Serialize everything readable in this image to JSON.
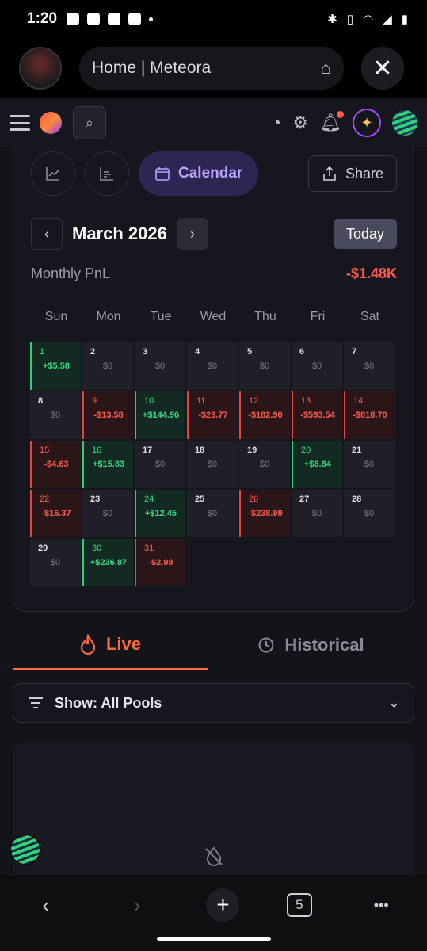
{
  "status": {
    "time": "1:20"
  },
  "browser": {
    "url_title": "Home | Meteora",
    "close_icon": "close-icon",
    "home_icon": "home-icon",
    "back_icon": "back-arrow-icon",
    "forward_icon": "forward-arrow-icon",
    "new_tab": "+",
    "tab_count": "5",
    "menu": "•••"
  },
  "header": {
    "icons": [
      "menu-icon",
      "meteora-logo-icon",
      "search-icon",
      "speedometer-icon",
      "gear-icon",
      "bell-icon",
      "sparkle-icon",
      "wallet-avatar-icon"
    ]
  },
  "view": {
    "calendar_label": "Calendar",
    "share_label": "Share",
    "month_label": "March 2026",
    "today_label": "Today",
    "monthly_pnl_label": "Monthly PnL",
    "monthly_pnl_value": "-$1.48K"
  },
  "weekdays": [
    "Sun",
    "Mon",
    "Tue",
    "Wed",
    "Thu",
    "Fri",
    "Sat"
  ],
  "days": [
    {
      "d": "1",
      "v": "+$5.58",
      "s": "pos"
    },
    {
      "d": "2",
      "v": "$0",
      "s": ""
    },
    {
      "d": "3",
      "v": "$0",
      "s": ""
    },
    {
      "d": "4",
      "v": "$0",
      "s": ""
    },
    {
      "d": "5",
      "v": "$0",
      "s": ""
    },
    {
      "d": "6",
      "v": "$0",
      "s": ""
    },
    {
      "d": "7",
      "v": "$0",
      "s": ""
    },
    {
      "d": "8",
      "v": "$0",
      "s": ""
    },
    {
      "d": "9",
      "v": "-$13.58",
      "s": "neg"
    },
    {
      "d": "10",
      "v": "+$144.96",
      "s": "pos"
    },
    {
      "d": "11",
      "v": "-$29.77",
      "s": "neg"
    },
    {
      "d": "12",
      "v": "-$182.90",
      "s": "neg"
    },
    {
      "d": "13",
      "v": "-$593.54",
      "s": "neg"
    },
    {
      "d": "14",
      "v": "-$818.70",
      "s": "neg"
    },
    {
      "d": "15",
      "v": "-$4.63",
      "s": "neg"
    },
    {
      "d": "16",
      "v": "+$15.83",
      "s": "pos"
    },
    {
      "d": "17",
      "v": "$0",
      "s": ""
    },
    {
      "d": "18",
      "v": "$0",
      "s": ""
    },
    {
      "d": "19",
      "v": "$0",
      "s": ""
    },
    {
      "d": "20",
      "v": "+$6.84",
      "s": "pos"
    },
    {
      "d": "21",
      "v": "$0",
      "s": ""
    },
    {
      "d": "22",
      "v": "-$16.37",
      "s": "neg"
    },
    {
      "d": "23",
      "v": "$0",
      "s": ""
    },
    {
      "d": "24",
      "v": "+$12.45",
      "s": "pos"
    },
    {
      "d": "25",
      "v": "$0",
      "s": ""
    },
    {
      "d": "26",
      "v": "-$238.99",
      "s": "neg"
    },
    {
      "d": "27",
      "v": "$0",
      "s": ""
    },
    {
      "d": "28",
      "v": "$0",
      "s": ""
    },
    {
      "d": "29",
      "v": "$0",
      "s": ""
    },
    {
      "d": "30",
      "v": "+$236.87",
      "s": "pos"
    },
    {
      "d": "31",
      "v": "-$2.98",
      "s": "neg"
    }
  ],
  "tabs": {
    "live": "Live",
    "historical": "Historical"
  },
  "filter": {
    "label": "Show: All Pools"
  },
  "colors": {
    "positive": "#36d986",
    "negative": "#ff5a4a",
    "accent": "#ff6a3c",
    "calendar_accent": "#b9a3ff"
  }
}
